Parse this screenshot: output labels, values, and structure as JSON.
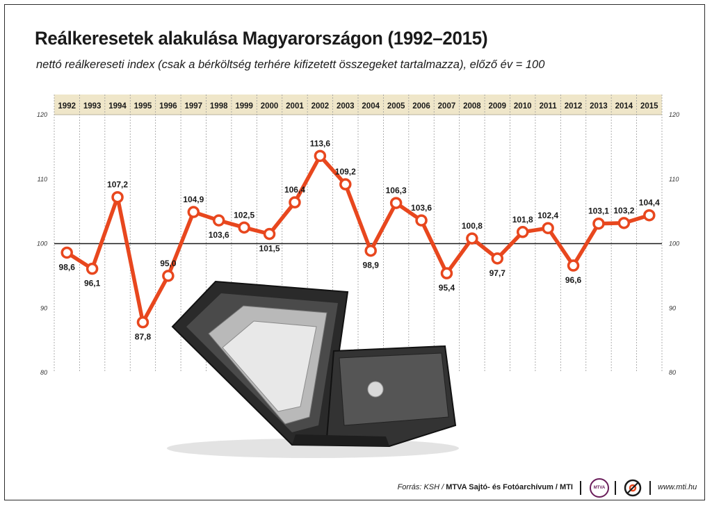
{
  "title": "Reálkeresetek alakulása Magyarországon (1992–2015)",
  "subtitle": "nettó reálkereseti index (csak a bérköltség terhére kifizetett összegeket tartalmazza), előző év = 100",
  "chart_data": {
    "type": "line",
    "categories": [
      "1992",
      "1993",
      "1994",
      "1995",
      "1996",
      "1997",
      "1998",
      "1999",
      "2000",
      "2001",
      "2002",
      "2003",
      "2004",
      "2005",
      "2006",
      "2007",
      "2008",
      "2009",
      "2010",
      "2011",
      "2012",
      "2013",
      "2014",
      "2015"
    ],
    "values": [
      98.6,
      96.1,
      107.2,
      87.8,
      95.0,
      104.9,
      103.6,
      102.5,
      101.5,
      106.4,
      113.6,
      109.2,
      98.9,
      106.3,
      103.6,
      95.4,
      100.8,
      97.7,
      101.8,
      102.4,
      96.6,
      103.1,
      103.2,
      104.4
    ],
    "value_labels": [
      "98,6",
      "96,1",
      "107,2",
      "87,8",
      "95,0",
      "104,9",
      "103,6",
      "102,5",
      "101,5",
      "106,4",
      "113,6",
      "109,2",
      "98,9",
      "106,3",
      "103,6",
      "95,4",
      "100,8",
      "97,7",
      "101,8",
      "102,4",
      "96,6",
      "103,1",
      "103,2",
      "104,4"
    ],
    "label_position": [
      "below",
      "below",
      "above",
      "below",
      "above",
      "above",
      "below",
      "above",
      "below",
      "above",
      "above",
      "above",
      "below",
      "above",
      "above",
      "below",
      "above",
      "below",
      "above",
      "above",
      "below",
      "above",
      "above",
      "above"
    ],
    "ylim": [
      80,
      120
    ],
    "yticks": [
      "80",
      "90",
      "100",
      "110",
      "120"
    ],
    "reference_line": 100,
    "grid": true,
    "line_color": "#e8471e",
    "header_color": "#efe6c9"
  },
  "footer": {
    "source_prefix": "Forrás: KSH / ",
    "source_bold": "MTVA Sajtó- és Fotóarchívum / MTI",
    "mtva_logo": "MTVA",
    "website": "www.mti.hu"
  }
}
